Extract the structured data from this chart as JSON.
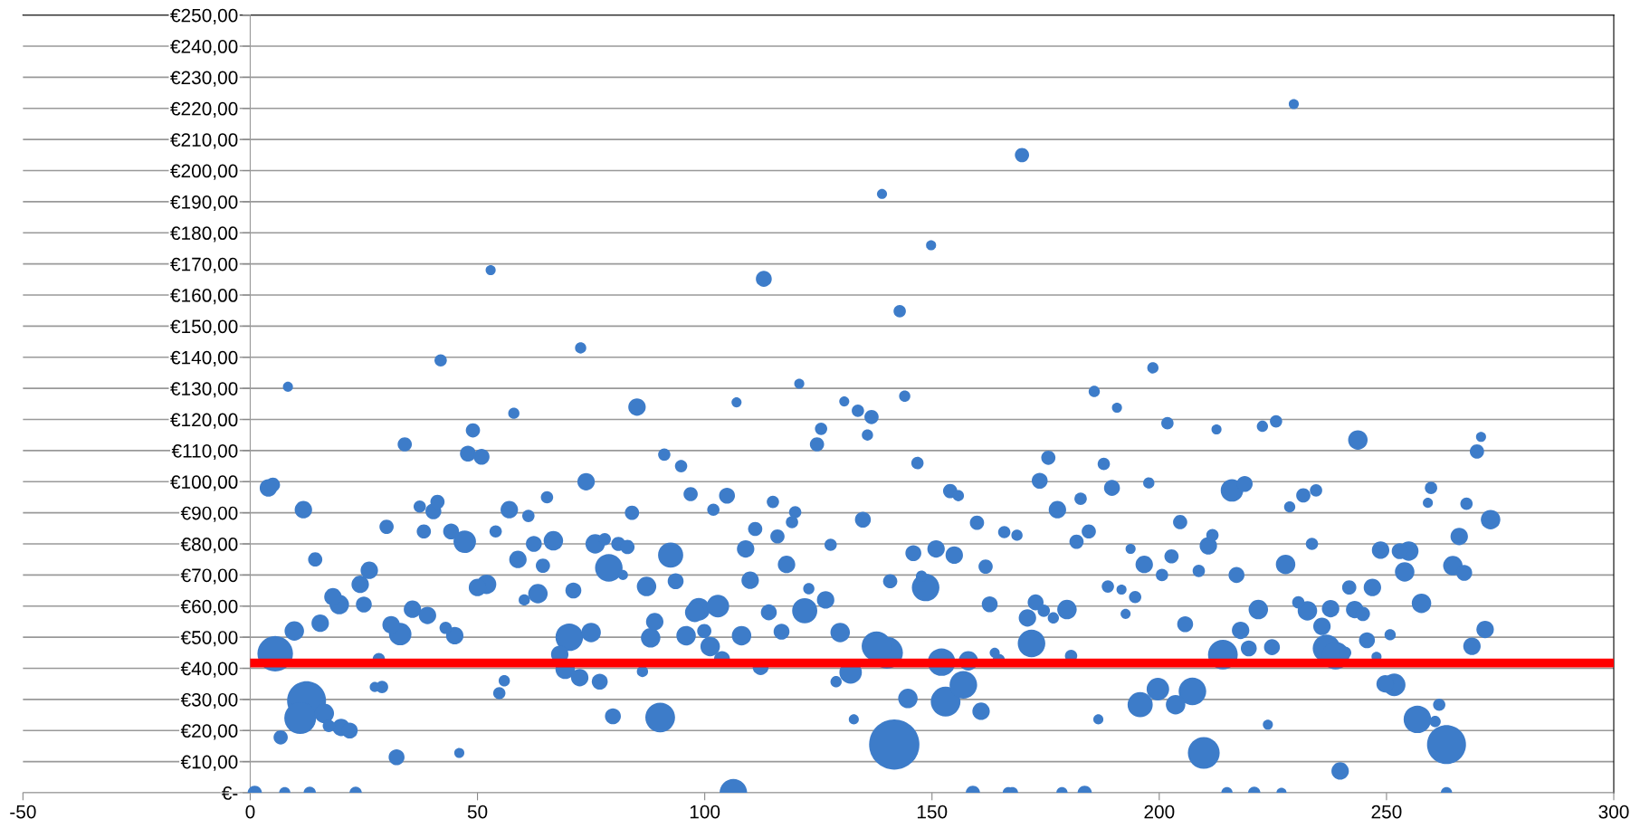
{
  "chart_data": {
    "type": "bubble",
    "xlim": [
      -50,
      300
    ],
    "xticks": [
      -50,
      0,
      50,
      100,
      150,
      200,
      250,
      300
    ],
    "ylim": [
      0,
      250
    ],
    "yticks": [
      {
        "value": 0,
        "label": "€-"
      },
      {
        "value": 10,
        "label": "€10,00"
      },
      {
        "value": 20,
        "label": "€20,00"
      },
      {
        "value": 30,
        "label": "€30,00"
      },
      {
        "value": 40,
        "label": "€40,00"
      },
      {
        "value": 50,
        "label": "€50,00"
      },
      {
        "value": 60,
        "label": "€60,00"
      },
      {
        "value": 70,
        "label": "€70,00"
      },
      {
        "value": 80,
        "label": "€80,00"
      },
      {
        "value": 90,
        "label": "€90,00"
      },
      {
        "value": 100,
        "label": "€100,00"
      },
      {
        "value": 110,
        "label": "€110,00"
      },
      {
        "value": 120,
        "label": "€120,00"
      },
      {
        "value": 130,
        "label": "€130,00"
      },
      {
        "value": 140,
        "label": "€140,00"
      },
      {
        "value": 150,
        "label": "€150,00"
      },
      {
        "value": 160,
        "label": "€160,00"
      },
      {
        "value": 170,
        "label": "€170,00"
      },
      {
        "value": 180,
        "label": "€180,00"
      },
      {
        "value": 190,
        "label": "€190,00"
      },
      {
        "value": 200,
        "label": "€200,00"
      },
      {
        "value": 210,
        "label": "€210,00"
      },
      {
        "value": 220,
        "label": "€220,00"
      },
      {
        "value": 230,
        "label": "€230,00"
      },
      {
        "value": 240,
        "label": "€240,00"
      },
      {
        "value": 250,
        "label": "€250,00"
      }
    ],
    "grid": "y",
    "ref_lines": [
      {
        "axis": "y",
        "value": 41.7,
        "color": "#ff0000",
        "line_style": "solid"
      }
    ],
    "series": [
      {
        "color": "#3d7cc9",
        "x": [
          1,
          4,
          5,
          5.5,
          6.7,
          7.6,
          8.3,
          9.7,
          11,
          11.7,
          12.4,
          13.1,
          14.3,
          15.4,
          16.3,
          17.3,
          18.2,
          19.6,
          20,
          21.9,
          23.2,
          24.2,
          25,
          26.2,
          27.4,
          28.3,
          29,
          30,
          31,
          32.2,
          33,
          34,
          35.7,
          37.3,
          38.2,
          39,
          40.3,
          41.2,
          41.9,
          43,
          44.2,
          45,
          46,
          47.2,
          47.9,
          49,
          50,
          50.9,
          52,
          52.9,
          54,
          54.8,
          55.9,
          57,
          58,
          58.9,
          60.3,
          61.2,
          62.4,
          63.3,
          64.4,
          65.3,
          66.7,
          68.1,
          69.3,
          70.2,
          71.1,
          72.5,
          72.7,
          73.9,
          75,
          75.9,
          76.9,
          78,
          78.9,
          79.8,
          81,
          82,
          83,
          84,
          85.1,
          86.3,
          87.2,
          88.1,
          89,
          90.2,
          91.1,
          92.5,
          93.6,
          94.8,
          95.9,
          96.9,
          97.8,
          98.7,
          99.9,
          101.2,
          101.9,
          102.9,
          103.8,
          104.9,
          106.3,
          107,
          108.1,
          109,
          110,
          111.1,
          112.3,
          113,
          114.1,
          115,
          116,
          116.9,
          118,
          119.2,
          119.9,
          120.8,
          122,
          122.9,
          124.7,
          125.6,
          126.6,
          127.7,
          128.9,
          129.8,
          130.7,
          132.1,
          132.8,
          133.7,
          134.8,
          135.8,
          136.7,
          137.8,
          139,
          140.1,
          140.8,
          141.7,
          142.9,
          144,
          144.7,
          145.9,
          146.8,
          147.7,
          148.6,
          149.8,
          150.9,
          152.1,
          153,
          154,
          154.9,
          155.8,
          156.9,
          158,
          159,
          159.9,
          160.8,
          161.8,
          162.7,
          163.8,
          164.7,
          165.9,
          166.8,
          167.7,
          168.7,
          169.8,
          171,
          171.9,
          172.8,
          173.7,
          174.6,
          175.6,
          176.7,
          177.6,
          178.6,
          179.7,
          180.6,
          181.8,
          182.7,
          183.6,
          184.5,
          185.7,
          186.6,
          187.8,
          188.7,
          189.6,
          190.7,
          191.7,
          192.6,
          193.7,
          194.7,
          195.8,
          196.7,
          197.7,
          198.6,
          199.7,
          200.6,
          201.8,
          202.7,
          203.6,
          204.6,
          205.7,
          207.3,
          208.7,
          209.8,
          210.8,
          211.7,
          212.6,
          214,
          214.9,
          216,
          217,
          217.9,
          218.8,
          219.7,
          220.9,
          221.8,
          222.7,
          223.9,
          224.8,
          225.7,
          226.9,
          227.8,
          228.7,
          229.6,
          230.6,
          231.7,
          232.6,
          233.6,
          234.5,
          235.8,
          236.8,
          237.7,
          238.8,
          239.8,
          240.9,
          241.8,
          243,
          243.7,
          244.8,
          245.7,
          246.9,
          247.8,
          248.7,
          249.7,
          250.8,
          251.7,
          252.9,
          254,
          254.9,
          256.8,
          257.7,
          259.1,
          259.8,
          260.7,
          261.6,
          263.2,
          263.2,
          264.6,
          266,
          267.1,
          267.6,
          268.8,
          269.9,
          270.8,
          271.7,
          272.9
        ],
        "values": [
          0,
          98,
          99,
          44.7,
          17.8,
          0,
          130.5,
          52,
          24,
          91,
          29.6,
          0,
          75,
          54.5,
          25.5,
          21.5,
          63,
          60.5,
          21,
          20,
          0,
          67,
          60.5,
          71.5,
          34,
          43,
          34,
          85.5,
          54,
          11.4,
          51,
          112,
          59,
          92,
          84,
          57,
          90.5,
          93.5,
          139,
          53,
          84,
          50.5,
          12.8,
          80.7,
          109,
          116.5,
          66,
          108,
          67,
          168,
          84,
          32,
          36,
          91,
          122,
          75,
          62,
          89,
          80,
          64,
          73,
          95,
          81,
          44.5,
          39.7,
          50,
          65,
          37,
          143,
          100,
          51.5,
          80,
          35.7,
          81.5,
          72.3,
          24.6,
          80,
          70,
          79,
          90,
          124,
          39,
          66.3,
          49.8,
          55,
          24.2,
          108.7,
          76.4,
          68,
          105,
          50.5,
          96,
          58,
          59,
          52,
          47,
          91,
          60,
          43,
          95.5,
          0,
          125.5,
          50.5,
          78.4,
          68.3,
          84.8,
          40.4,
          165.2,
          58,
          93.5,
          82.4,
          51.8,
          73.4,
          87,
          90.2,
          131.5,
          58.5,
          65.6,
          112,
          117,
          62,
          79.7,
          35.7,
          51.5,
          125.8,
          38.7,
          23.6,
          122.8,
          87.8,
          115,
          120.8,
          47.1,
          192.5,
          45,
          68,
          15.5,
          154.8,
          127.5,
          30.3,
          77,
          106,
          69.6,
          66,
          176,
          78.4,
          42,
          29.3,
          97,
          76.4,
          95.5,
          34.7,
          42.4,
          0,
          86.8,
          26.2,
          72.7,
          60.6,
          45,
          42.7,
          83.8,
          0,
          0,
          82.8,
          205,
          56.2,
          48,
          61.2,
          100.3,
          58.5,
          107.7,
          56.2,
          91,
          0,
          58.9,
          44,
          80.7,
          94.5,
          0,
          84,
          129,
          23.6,
          105.7,
          66.3,
          98,
          123.8,
          65.3,
          57.5,
          78.4,
          62.9,
          28.3,
          73.4,
          99.6,
          136.6,
          33.3,
          70,
          118.8,
          76,
          28.3,
          87,
          54.2,
          32.6,
          71.3,
          12.8,
          79.4,
          82.8,
          116.8,
          44.4,
          0,
          97.2,
          70,
          52.2,
          99.3,
          46.4,
          0,
          58.9,
          117.8,
          21.9,
          46.8,
          119.4,
          0,
          73.4,
          91.9,
          221.4,
          61.2,
          95.6,
          58.5,
          80,
          97.2,
          53.5,
          46.4,
          59.2,
          44.1,
          7,
          45,
          66,
          58.9,
          113.4,
          57.5,
          49,
          66,
          43.7,
          78,
          35,
          50.8,
          34.7,
          77.7,
          71,
          77.7,
          23.6,
          60.9,
          93.2,
          98,
          22.9,
          28.3,
          0,
          15.5,
          73,
          82.4,
          70.7,
          92.9,
          47.1,
          109.7,
          114.4,
          52.5,
          87.8
        ],
        "sizes": [
          0.08,
          0.12,
          0.08,
          0.5,
          0.08,
          0.05,
          0.04,
          0.15,
          0.4,
          0.12,
          0.6,
          0.06,
          0.08,
          0.12,
          0.15,
          0.06,
          0.12,
          0.15,
          0.12,
          0.1,
          0.06,
          0.12,
          0.1,
          0.12,
          0.04,
          0.06,
          0.06,
          0.08,
          0.12,
          0.1,
          0.2,
          0.08,
          0.12,
          0.06,
          0.08,
          0.12,
          0.1,
          0.08,
          0.06,
          0.06,
          0.1,
          0.12,
          0.04,
          0.2,
          0.1,
          0.08,
          0.12,
          0.1,
          0.15,
          0.04,
          0.06,
          0.06,
          0.05,
          0.12,
          0.05,
          0.12,
          0.05,
          0.06,
          0.1,
          0.15,
          0.08,
          0.06,
          0.15,
          0.12,
          0.15,
          0.3,
          0.1,
          0.12,
          0.05,
          0.12,
          0.15,
          0.15,
          0.1,
          0.06,
          0.3,
          0.1,
          0.08,
          0.04,
          0.08,
          0.08,
          0.12,
          0.05,
          0.15,
          0.15,
          0.12,
          0.35,
          0.06,
          0.25,
          0.1,
          0.06,
          0.15,
          0.08,
          0.15,
          0.2,
          0.08,
          0.15,
          0.06,
          0.2,
          0.1,
          0.1,
          0.3,
          0.04,
          0.15,
          0.12,
          0.12,
          0.08,
          0.1,
          0.1,
          0.1,
          0.06,
          0.08,
          0.1,
          0.12,
          0.06,
          0.06,
          0.04,
          0.25,
          0.05,
          0.08,
          0.06,
          0.12,
          0.06,
          0.05,
          0.15,
          0.04,
          0.2,
          0.04,
          0.06,
          0.1,
          0.05,
          0.08,
          0.35,
          0.04,
          0.4,
          0.08,
          1.0,
          0.06,
          0.05,
          0.15,
          0.1,
          0.06,
          0.05,
          0.3,
          0.04,
          0.12,
          0.3,
          0.35,
          0.08,
          0.12,
          0.05,
          0.3,
          0.15,
          0.08,
          0.08,
          0.12,
          0.08,
          0.1,
          0.04,
          0.06,
          0.06,
          0.05,
          0.05,
          0.05,
          0.08,
          0.12,
          0.3,
          0.1,
          0.1,
          0.06,
          0.08,
          0.05,
          0.12,
          0.05,
          0.15,
          0.06,
          0.08,
          0.06,
          0.08,
          0.08,
          0.05,
          0.04,
          0.06,
          0.06,
          0.1,
          0.04,
          0.04,
          0.04,
          0.04,
          0.06,
          0.25,
          0.12,
          0.05,
          0.05,
          0.2,
          0.06,
          0.06,
          0.08,
          0.15,
          0.08,
          0.1,
          0.3,
          0.06,
          0.4,
          0.12,
          0.06,
          0.04,
          0.35,
          0.05,
          0.2,
          0.1,
          0.12,
          0.1,
          0.1,
          0.06,
          0.15,
          0.05,
          0.04,
          0.1,
          0.06,
          0.04,
          0.15,
          0.05,
          0.04,
          0.06,
          0.08,
          0.15,
          0.06,
          0.06,
          0.12,
          0.3,
          0.12,
          0.3,
          0.12,
          0.06,
          0.08,
          0.12,
          0.15,
          0.08,
          0.1,
          0.12,
          0.04,
          0.12,
          0.12,
          0.05,
          0.2,
          0.1,
          0.15,
          0.15,
          0.3,
          0.15,
          0.04,
          0.06,
          0.05,
          0.06,
          0.05,
          0.6,
          0.15,
          0.12,
          0.1,
          0.06,
          0.12,
          0.08,
          0.04,
          0.12,
          0.15
        ]
      }
    ]
  }
}
